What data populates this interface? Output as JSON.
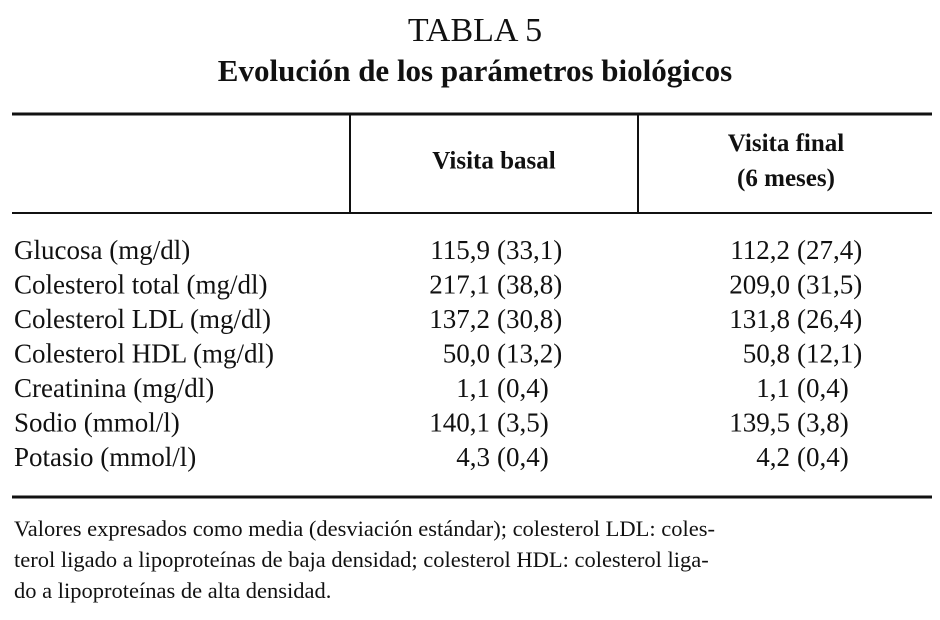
{
  "header": {
    "title": "TABLA 5",
    "subtitle": "Evolución de los parámetros biológicos"
  },
  "table": {
    "columns": [
      [
        "Visita basal"
      ],
      [
        "Visita final",
        "(6 meses)"
      ]
    ],
    "rows": [
      [
        "Glucosa (mg/dl)",
        [
          "115,9",
          "(33,1)"
        ],
        [
          "112,2",
          "(27,4)"
        ]
      ],
      [
        "Colesterol total (mg/dl)",
        [
          "217,1",
          "(38,8)"
        ],
        [
          "209,0",
          "(31,5)"
        ]
      ],
      [
        "Colesterol LDL (mg/dl)",
        [
          "137,2",
          "(30,8)"
        ],
        [
          "131,8",
          "(26,4)"
        ]
      ],
      [
        "Colesterol HDL (mg/dl)",
        [
          "50,0",
          "(13,2)"
        ],
        [
          "50,8",
          "(12,1)"
        ]
      ],
      [
        "Creatinina (mg/dl)",
        [
          "1,1",
          "(0,4)"
        ],
        [
          "1,1",
          "(0,4)"
        ]
      ],
      [
        "Sodio (mmol/l)",
        [
          "140,1",
          "(3,5)"
        ],
        [
          "139,5",
          "(3,8)"
        ]
      ],
      [
        "Potasio (mmol/l)",
        [
          "4,3",
          "(0,4)"
        ],
        [
          "4,2",
          "(0,4)"
        ]
      ]
    ]
  },
  "footnote": [
    "Valores expresados como media (desviación estándar); colesterol LDL: coles-",
    "terol ligado a lipoproteínas de baja densidad; colesterol HDL: colesterol liga-",
    "do a lipoproteínas de alta densidad."
  ]
}
